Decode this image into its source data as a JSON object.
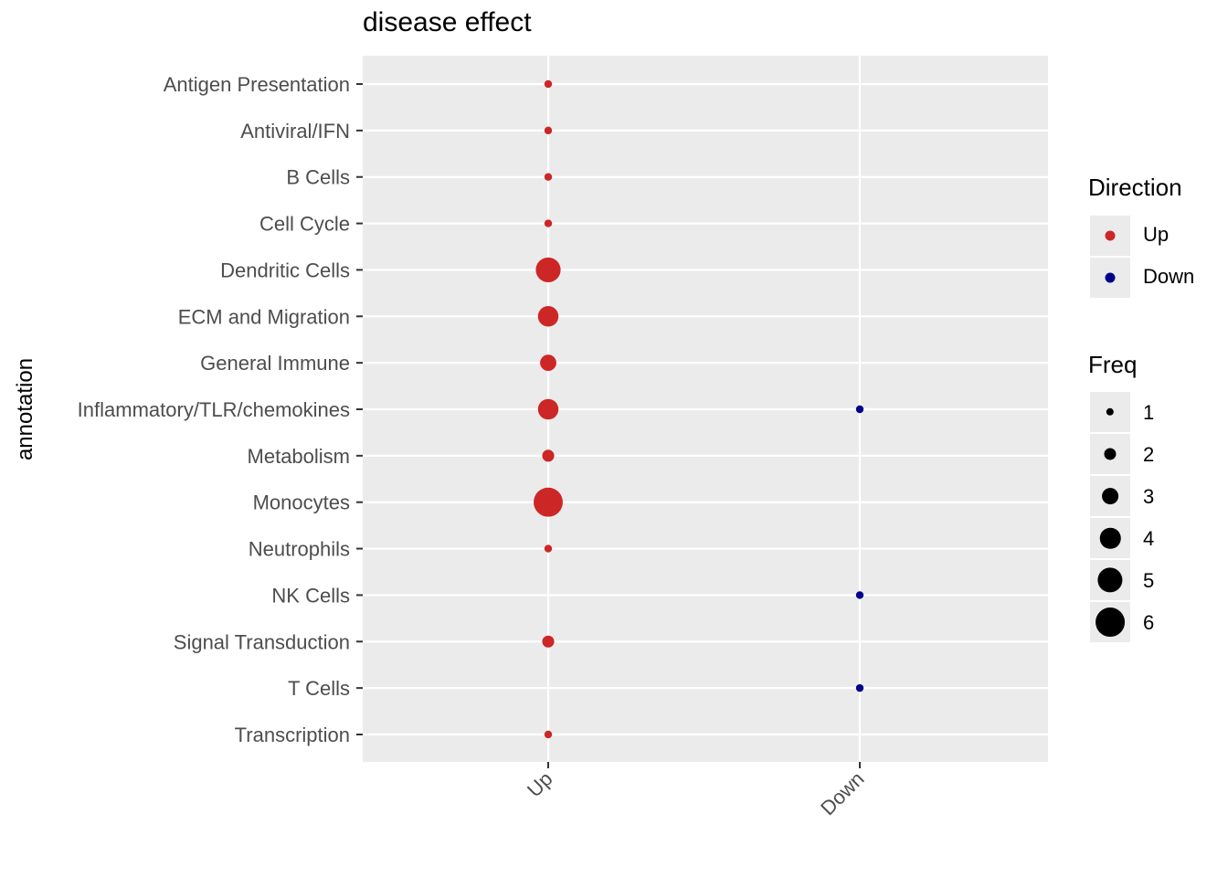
{
  "chart_data": {
    "type": "scatter",
    "title": "disease effect",
    "xlabel": "",
    "ylabel": "annotation",
    "x_categories": [
      "Up",
      "Down"
    ],
    "y_categories": [
      "Antigen Presentation",
      "Antiviral/IFN",
      "B Cells",
      "Cell Cycle",
      "Dendritic Cells",
      "ECM and Migration",
      "General Immune",
      "Inflammatory/TLR/chemokines",
      "Metabolism",
      "Monocytes",
      "Neutrophils",
      "NK Cells",
      "Signal Transduction",
      "T Cells",
      "Transcription"
    ],
    "points": [
      {
        "x": "Up",
        "y": "Antigen Presentation",
        "freq": 1
      },
      {
        "x": "Up",
        "y": "Antiviral/IFN",
        "freq": 1
      },
      {
        "x": "Up",
        "y": "B Cells",
        "freq": 1
      },
      {
        "x": "Up",
        "y": "Cell Cycle",
        "freq": 1
      },
      {
        "x": "Up",
        "y": "Dendritic Cells",
        "freq": 5
      },
      {
        "x": "Up",
        "y": "ECM and Migration",
        "freq": 4
      },
      {
        "x": "Up",
        "y": "General Immune",
        "freq": 3
      },
      {
        "x": "Up",
        "y": "Inflammatory/TLR/chemokines",
        "freq": 4
      },
      {
        "x": "Down",
        "y": "Inflammatory/TLR/chemokines",
        "freq": 1
      },
      {
        "x": "Up",
        "y": "Metabolism",
        "freq": 2
      },
      {
        "x": "Up",
        "y": "Monocytes",
        "freq": 6
      },
      {
        "x": "Up",
        "y": "Neutrophils",
        "freq": 1
      },
      {
        "x": "Down",
        "y": "NK Cells",
        "freq": 1
      },
      {
        "x": "Up",
        "y": "Signal Transduction",
        "freq": 2
      },
      {
        "x": "Down",
        "y": "T Cells",
        "freq": 1
      },
      {
        "x": "Up",
        "y": "Transcription",
        "freq": 1
      }
    ],
    "legend": {
      "placement": "right",
      "direction": {
        "title": "Direction",
        "entries": [
          {
            "label": "Up",
            "color": "#cd2626"
          },
          {
            "label": "Down",
            "color": "#00008b"
          }
        ]
      },
      "freq": {
        "title": "Freq",
        "entries": [
          {
            "label": "1",
            "value": 1
          },
          {
            "label": "2",
            "value": 2
          },
          {
            "label": "3",
            "value": 3
          },
          {
            "label": "4",
            "value": 4
          },
          {
            "label": "5",
            "value": 5
          },
          {
            "label": "6",
            "value": 6
          }
        ]
      }
    },
    "grid": true,
    "colors": {
      "panel": "#ebebeb",
      "grid": "#ffffff",
      "tick_text": "#4d4d4d",
      "up": "#cd2626",
      "down": "#00008b"
    }
  }
}
